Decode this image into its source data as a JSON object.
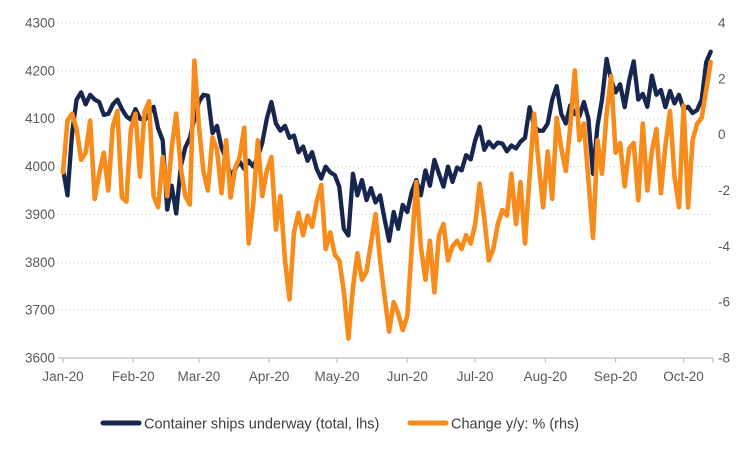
{
  "chart_data": {
    "type": "line",
    "title": "",
    "grid": "horizontal-dotted",
    "legend_position": "bottom",
    "x_axis": {
      "categories": [
        "Jan-20",
        "Feb-20",
        "Mar-20",
        "Apr-20",
        "May-20",
        "Jun-20",
        "Jul-20",
        "Aug-20",
        "Sep-20",
        "Oct-20"
      ],
      "month_start_days": [
        0,
        31,
        60,
        91,
        121,
        152,
        182,
        213,
        244,
        274
      ],
      "total_days": 287
    },
    "left_axis": {
      "ticks": [
        4300,
        4200,
        4100,
        4000,
        3900,
        3800,
        3700,
        3600
      ],
      "max": 4300,
      "min": 3600
    },
    "right_axis": {
      "ticks": [
        4,
        2,
        0,
        -2,
        -4,
        -6,
        -8
      ],
      "max": 4,
      "min": -8
    },
    "sample_step_days": 2,
    "series": [
      {
        "name": "Container ships underway (total, lhs)",
        "axis": "left",
        "color": "#17264e",
        "stroke_width": 4.3,
        "values": [
          3995,
          3940,
          4070,
          4140,
          4155,
          4130,
          4150,
          4140,
          4135,
          4108,
          4110,
          4130,
          4140,
          4120,
          4105,
          4098,
          4120,
          4100,
          4097,
          4110,
          4125,
          4080,
          4055,
          3910,
          3960,
          3902,
          4000,
          4040,
          4060,
          4100,
          4135,
          4150,
          4148,
          4070,
          4085,
          4040,
          4015,
          3980,
          3995,
          4010,
          3995,
          4012,
          4000,
          4020,
          4050,
          4100,
          4135,
          4090,
          4075,
          4085,
          4060,
          4065,
          4030,
          4042,
          4012,
          4030,
          3995,
          3975,
          4000,
          3988,
          3982,
          3958,
          3870,
          3856,
          3985,
          3940,
          3972,
          3930,
          3955,
          3925,
          3940,
          3890,
          3845,
          3905,
          3870,
          3920,
          3905,
          3948,
          3972,
          3940,
          3992,
          3960,
          4014,
          3985,
          3958,
          4000,
          3968,
          3998,
          3992,
          4024,
          4015,
          4055,
          4083,
          4035,
          4052,
          4040,
          4050,
          4048,
          4032,
          4044,
          4038,
          4052,
          4060,
          4124,
          4085,
          4075,
          4075,
          4090,
          4140,
          4168,
          4110,
          4090,
          4128,
          4110,
          4105,
          4135,
          4100,
          3985,
          4085,
          4140,
          4225,
          4180,
          4155,
          4172,
          4124,
          4180,
          4220,
          4140,
          4152,
          4125,
          4190,
          4150,
          4160,
          4124,
          4158,
          4132,
          4150,
          4120,
          4125,
          4112,
          4118,
          4140,
          4218,
          4240
        ]
      },
      {
        "name": "Change y/y: % (rhs)",
        "axis": "right",
        "color": "#f78c1c",
        "stroke_width": 4.6,
        "values": [
          -1.35,
          0.5,
          0.75,
          0.2,
          -0.9,
          -0.65,
          0.5,
          -2.3,
          -1.4,
          -0.65,
          -2.0,
          0.3,
          0.85,
          -2.25,
          -2.4,
          0.2,
          0.75,
          -1.5,
          0.8,
          1.2,
          -2.2,
          -2.6,
          -0.8,
          -2.2,
          -0.5,
          0.75,
          -1.2,
          -2.2,
          -2.5,
          2.65,
          0.3,
          -1.3,
          -2.0,
          -0.1,
          -0.55,
          -2.1,
          -0.2,
          -2.25,
          -1.2,
          -0.8,
          0.25,
          -3.9,
          -2.5,
          -0.2,
          -2.2,
          -1.3,
          -0.8,
          -3.4,
          -2.2,
          -4.5,
          -5.9,
          -3.5,
          -2.8,
          -3.6,
          -2.9,
          -3.3,
          -2.4,
          -1.8,
          -4.1,
          -3.5,
          -4.3,
          -4.5,
          -5.6,
          -7.3,
          -5.5,
          -4.25,
          -5.2,
          -4.9,
          -3.9,
          -2.85,
          -4.5,
          -5.8,
          -7.05,
          -6.0,
          -6.4,
          -7.0,
          -6.5,
          -4.0,
          -1.7,
          -4.0,
          -5.2,
          -3.8,
          -5.65,
          -3.6,
          -3.2,
          -4.5,
          -4.0,
          -3.8,
          -4.1,
          -3.6,
          -3.9,
          -3.2,
          -1.75,
          -3.0,
          -4.5,
          -4.1,
          -3.2,
          -2.7,
          -2.9,
          -1.4,
          -3.2,
          -1.7,
          -3.9,
          -1.5,
          0.75,
          -1.0,
          -2.6,
          -0.6,
          -2.3,
          0.6,
          -0.5,
          -1.3,
          0.3,
          2.3,
          -0.2,
          0.4,
          -1.6,
          -3.7,
          -0.2,
          -1.4,
          0.75,
          2.1,
          -0.65,
          -0.3,
          -1.85,
          -0.5,
          -0.3,
          -2.35,
          0.4,
          -2.0,
          -0.6,
          0.2,
          -2.1,
          -0.4,
          0.85,
          -1.5,
          -2.6,
          1.05,
          -2.6,
          -0.2,
          0.4,
          0.6,
          1.6,
          2.6
        ]
      }
    ],
    "style": {
      "grid_color": "#c9c9c9",
      "axis_color": "#bfbfbf",
      "tick_label_color": "#5a5a5a",
      "legend_text_color": "#3d3d3d",
      "background": "#ffffff"
    }
  }
}
